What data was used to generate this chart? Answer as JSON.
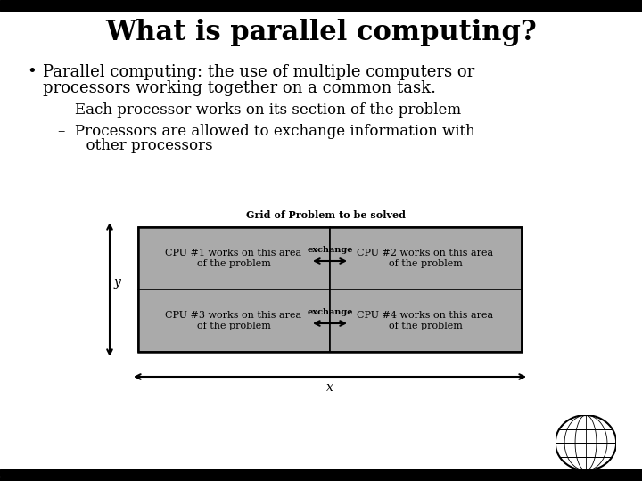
{
  "title": "What is parallel computing?",
  "title_fontsize": 22,
  "bg_color": "#ffffff",
  "top_bar_color": "#000000",
  "bottom_bar_color": "#000000",
  "bullet_line1": "Parallel computing: the use of multiple computers or",
  "bullet_line2": "processors working together on a common task.",
  "sub1": "–  Each processor works on its section of the problem",
  "sub2": "–  Processors are allowed to exchange information with",
  "sub2b": "      other processors",
  "grid_label": "Grid of Problem to be solved",
  "cpu1": "CPU #1 works on this area\nof the problem",
  "cpu2": "CPU #2 works on this area\nof the problem",
  "cpu3": "CPU #3 works on this area\nof the problem",
  "cpu4": "CPU #4 works on this area\nof the problem",
  "exchange_label": "exchange",
  "x_axis_label": "x",
  "y_axis_label": "y",
  "grid_bg": "#aaaaaa",
  "grid_line_color": "#000000",
  "text_color": "#000000",
  "font_family": "serif",
  "bullet_fontsize": 13,
  "sub_fontsize": 12,
  "cpu_fontsize": 8,
  "grid_label_fontsize": 8
}
